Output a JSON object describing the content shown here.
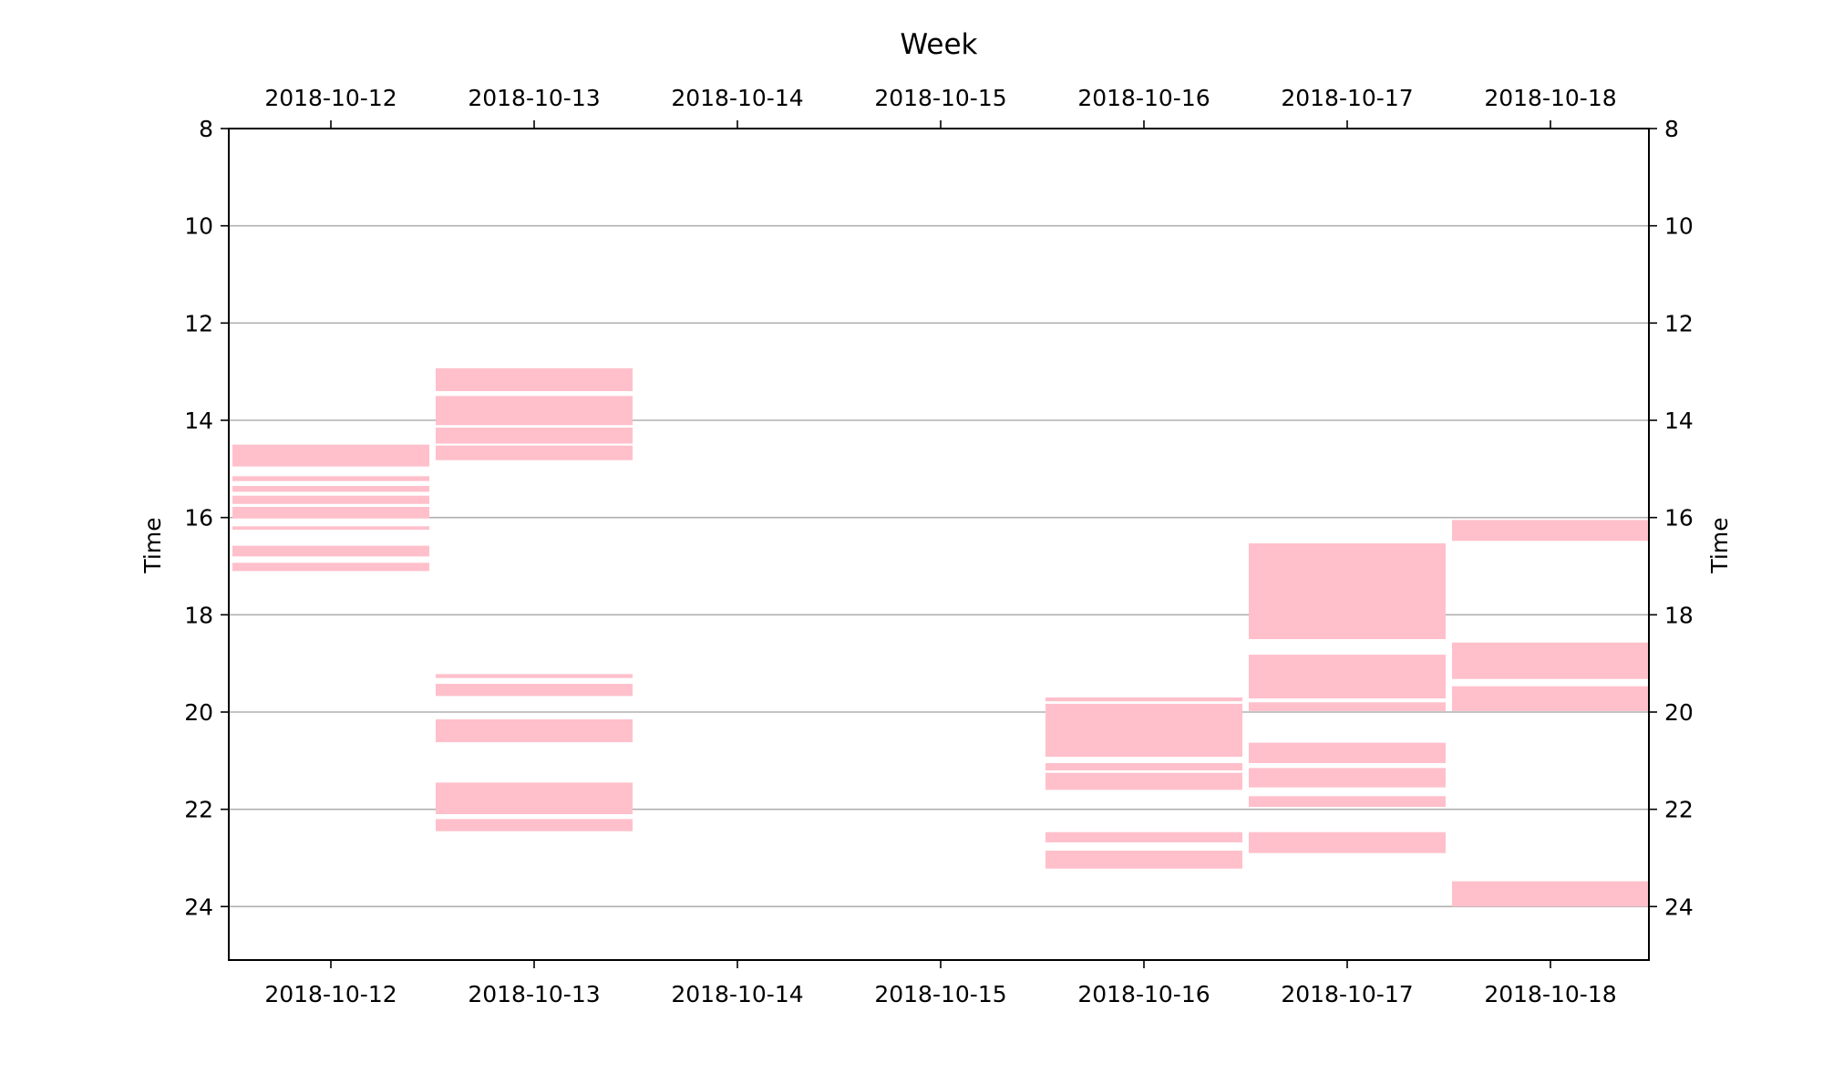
{
  "chart_data": {
    "type": "bar",
    "subtype": "floating-horizontal-bars-per-day",
    "title": "Week",
    "ylabel": "Time",
    "ylabel_right": "Time",
    "y_inverted": true,
    "ylim": [
      8,
      25.1
    ],
    "yticks": [
      8,
      10,
      12,
      14,
      16,
      18,
      20,
      22,
      24
    ],
    "grid": "horizontal",
    "bar_color": "#ffc0cb",
    "gridline_color": "#b0b0b0",
    "categories": [
      "2018-10-12",
      "2018-10-13",
      "2018-10-14",
      "2018-10-15",
      "2018-10-16",
      "2018-10-17",
      "2018-10-18"
    ],
    "intervals": [
      [
        [
          14.5,
          14.95
        ],
        [
          15.15,
          15.25
        ],
        [
          15.35,
          15.47
        ],
        [
          15.55,
          15.72
        ],
        [
          15.78,
          16.02
        ],
        [
          16.18,
          16.25
        ],
        [
          16.58,
          16.8
        ],
        [
          16.93,
          17.1
        ]
      ],
      [
        [
          12.93,
          13.4
        ],
        [
          13.5,
          14.1
        ],
        [
          14.15,
          14.48
        ],
        [
          14.52,
          14.82
        ],
        [
          19.22,
          19.3
        ],
        [
          19.42,
          19.67
        ],
        [
          20.15,
          20.62
        ],
        [
          21.45,
          22.1
        ],
        [
          22.2,
          22.45
        ]
      ],
      [],
      [],
      [
        [
          19.7,
          19.78
        ],
        [
          19.83,
          20.92
        ],
        [
          21.05,
          21.2
        ],
        [
          21.25,
          21.6
        ],
        [
          22.47,
          22.68
        ],
        [
          22.85,
          23.22
        ]
      ],
      [
        [
          16.53,
          18.5
        ],
        [
          18.82,
          19.72
        ],
        [
          19.8,
          19.98
        ],
        [
          20.63,
          21.05
        ],
        [
          21.15,
          21.55
        ],
        [
          21.73,
          21.95
        ],
        [
          22.47,
          22.9
        ]
      ],
      [
        [
          16.05,
          16.48
        ],
        [
          18.57,
          19.32
        ],
        [
          19.47,
          19.98
        ],
        [
          23.48,
          24.0
        ]
      ]
    ]
  }
}
